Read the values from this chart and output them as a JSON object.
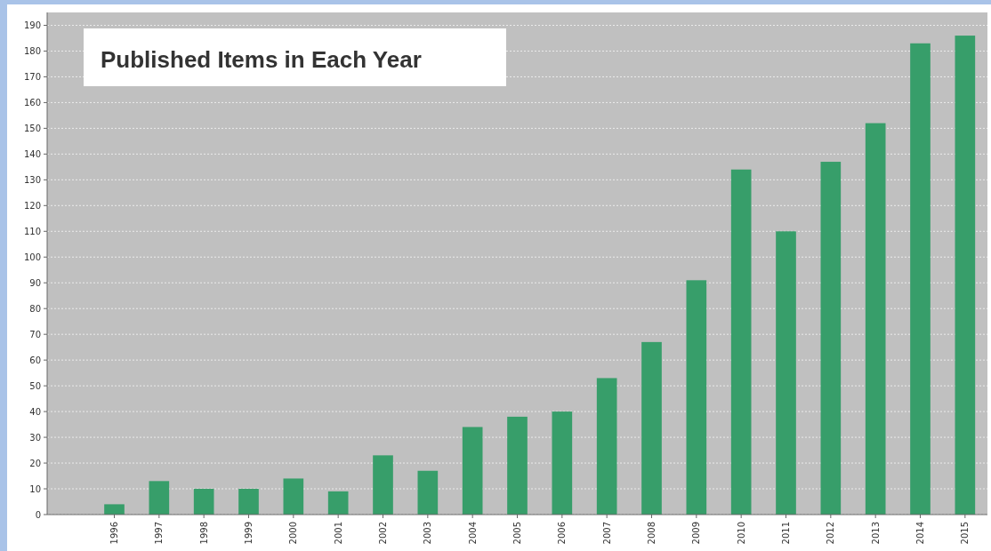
{
  "chart_data": {
    "type": "bar",
    "title": "Published Items in Each Year",
    "categories": [
      "1996",
      "1997",
      "1998",
      "1999",
      "2000",
      "2001",
      "2002",
      "2003",
      "2004",
      "2005",
      "2006",
      "2007",
      "2008",
      "2009",
      "2010",
      "2011",
      "2012",
      "2013",
      "2014",
      "2015"
    ],
    "values": [
      4,
      13,
      10,
      10,
      14,
      9,
      23,
      17,
      34,
      38,
      40,
      53,
      67,
      91,
      134,
      110,
      137,
      152,
      183,
      186
    ],
    "color": "#379e6a",
    "ylim": [
      0,
      195
    ],
    "yticks": [
      0,
      10,
      20,
      30,
      40,
      50,
      60,
      70,
      80,
      90,
      100,
      110,
      120,
      130,
      140,
      150,
      160,
      170,
      180,
      190
    ],
    "grid": "y"
  }
}
